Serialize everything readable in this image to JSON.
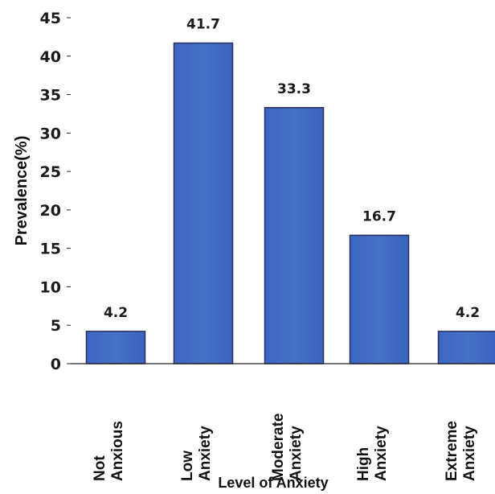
{
  "chart_data": {
    "type": "bar",
    "categories": [
      [
        "Not",
        "Anxious"
      ],
      [
        "Low",
        "Anxiety"
      ],
      [
        "Moderate",
        "Anxiety"
      ],
      [
        "High",
        "Anxiety"
      ],
      [
        "Extreme",
        "Anxiety"
      ]
    ],
    "values": [
      4.2,
      41.7,
      33.3,
      16.7,
      4.2
    ],
    "value_labels": [
      "4.2",
      "41.7",
      "33.3",
      "16.7",
      "4.2"
    ],
    "title": "",
    "xlabel": "Level of Anxiety",
    "ylabel": "Prevalence(%)",
    "ylim": [
      0,
      45
    ],
    "yticks": [
      0,
      5,
      10,
      15,
      20,
      25,
      30,
      35,
      40,
      45
    ],
    "grid": false,
    "legend": "none",
    "bar_color": "#4472C4"
  }
}
